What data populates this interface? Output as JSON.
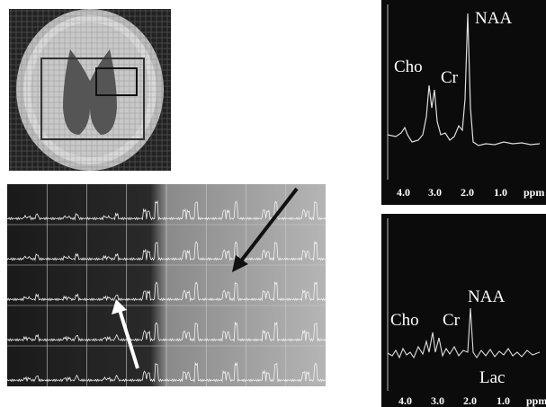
{
  "top_spectrum": {
    "peaks": [
      "NAA",
      "Cho",
      "Cr"
    ],
    "axis_labels": [
      "4.0",
      "3.0",
      "2.0",
      "1.0"
    ],
    "unit": "ppm"
  },
  "bottom_spectrum": {
    "peaks": [
      "NAA",
      "Cho",
      "Cr",
      "Lac"
    ],
    "axis_labels": [
      "4.0",
      "3.0",
      "2.0",
      "1.0"
    ],
    "unit": "ppm"
  }
}
